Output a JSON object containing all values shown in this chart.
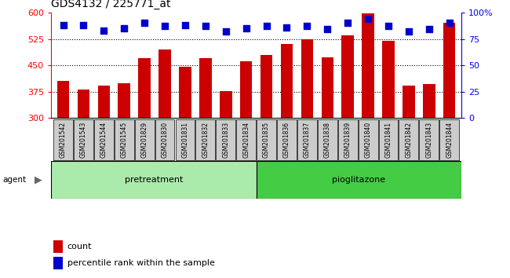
{
  "title": "GDS4132 / 225771_at",
  "categories": [
    "GSM201542",
    "GSM201543",
    "GSM201544",
    "GSM201545",
    "GSM201829",
    "GSM201830",
    "GSM201831",
    "GSM201832",
    "GSM201833",
    "GSM201834",
    "GSM201835",
    "GSM201836",
    "GSM201837",
    "GSM201838",
    "GSM201839",
    "GSM201840",
    "GSM201841",
    "GSM201842",
    "GSM201843",
    "GSM201844"
  ],
  "bar_values": [
    405,
    382,
    393,
    400,
    470,
    495,
    447,
    470,
    377,
    462,
    480,
    510,
    523,
    472,
    535,
    597,
    520,
    392,
    397,
    570
  ],
  "dot_values": [
    88,
    88,
    83,
    85,
    90,
    87,
    88,
    87,
    82,
    85,
    87,
    86,
    87,
    84,
    90,
    94,
    87,
    82,
    84,
    90
  ],
  "pretreatment_count": 10,
  "pioglitazone_count": 10,
  "ylim_left": [
    300,
    600
  ],
  "ylim_right": [
    0,
    100
  ],
  "yticks_left": [
    300,
    375,
    450,
    525,
    600
  ],
  "yticks_right": [
    0,
    25,
    50,
    75,
    100
  ],
  "bar_color": "#cc0000",
  "dot_color": "#0000cc",
  "pretreatment_color": "#aaeaaa",
  "pioglitazone_color": "#44cc44",
  "xticklabel_bg": "#cccccc",
  "bar_width": 0.6,
  "dot_size": 40,
  "dot_marker": "s",
  "legend_count_label": "count",
  "legend_pct_label": "percentile rank within the sample",
  "agent_label": "agent"
}
